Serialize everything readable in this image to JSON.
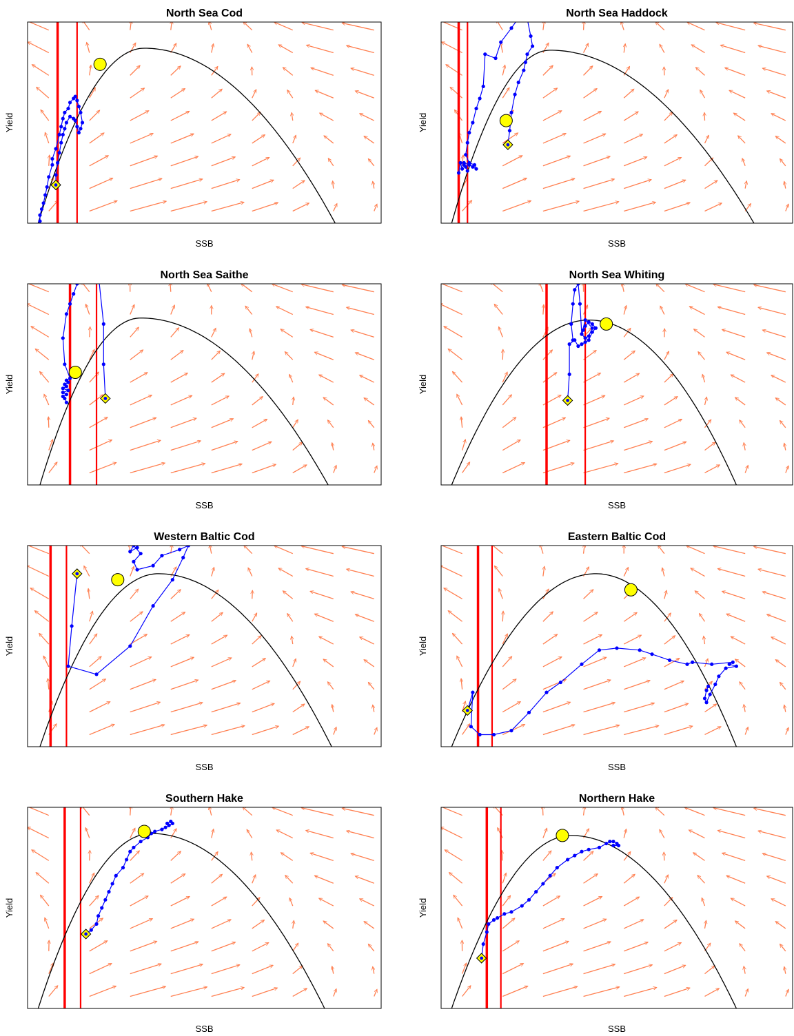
{
  "colors": {
    "arrow": "#ff7f50",
    "trajectory": "#0000ff",
    "curve": "#000000",
    "reference_line": "#ff0000",
    "marker_fill": "#ffff00"
  },
  "chart_data": [
    {
      "type": "scatter",
      "title": "North Sea Cod",
      "xlabel": "SSB",
      "ylabel": "Yield",
      "xlim": [
        0,
        1
      ],
      "ylim": [
        0,
        1
      ],
      "curve": {
        "type": "parabola",
        "x0": 0.03,
        "peak_x": 0.33,
        "peak_y": 0.87,
        "x1": 0.87
      },
      "vlines": [
        {
          "x": 0.085,
          "weight": "thick"
        },
        {
          "x": 0.14,
          "weight": "thin"
        }
      ],
      "circle": [
        0.205,
        0.79
      ],
      "diamond": [
        0.08,
        0.19
      ],
      "trajectory": [
        [
          0.035,
          0.01
        ],
        [
          0.035,
          0.04
        ],
        [
          0.04,
          0.07
        ],
        [
          0.045,
          0.1
        ],
        [
          0.05,
          0.14
        ],
        [
          0.055,
          0.18
        ],
        [
          0.06,
          0.23
        ],
        [
          0.07,
          0.29
        ],
        [
          0.07,
          0.32
        ],
        [
          0.08,
          0.37
        ],
        [
          0.09,
          0.44
        ],
        [
          0.095,
          0.48
        ],
        [
          0.1,
          0.52
        ],
        [
          0.105,
          0.55
        ],
        [
          0.115,
          0.57
        ],
        [
          0.12,
          0.6
        ],
        [
          0.13,
          0.62
        ],
        [
          0.135,
          0.63
        ],
        [
          0.14,
          0.61
        ],
        [
          0.145,
          0.58
        ],
        [
          0.15,
          0.55
        ],
        [
          0.155,
          0.5
        ],
        [
          0.15,
          0.47
        ],
        [
          0.145,
          0.45
        ],
        [
          0.14,
          0.48
        ],
        [
          0.135,
          0.51
        ],
        [
          0.13,
          0.52
        ],
        [
          0.12,
          0.53
        ],
        [
          0.11,
          0.5
        ],
        [
          0.105,
          0.47
        ],
        [
          0.1,
          0.44
        ],
        [
          0.095,
          0.4
        ],
        [
          0.09,
          0.35
        ],
        [
          0.085,
          0.3
        ],
        [
          0.08,
          0.24
        ],
        [
          0.08,
          0.2
        ]
      ]
    },
    {
      "type": "scatter",
      "title": "North Sea Haddock",
      "xlabel": "SSB",
      "ylabel": "Yield",
      "xlim": [
        0,
        1
      ],
      "ylim": [
        0,
        1
      ],
      "curve": {
        "type": "parabola",
        "x0": 0.03,
        "peak_x": 0.31,
        "peak_y": 0.86,
        "x1": 0.89
      },
      "vlines": [
        {
          "x": 0.05,
          "weight": "thick"
        },
        {
          "x": 0.075,
          "weight": "thin"
        }
      ],
      "circle": [
        0.185,
        0.51
      ],
      "diamond": [
        0.19,
        0.39
      ],
      "trajectory": [
        [
          0.05,
          0.25
        ],
        [
          0.055,
          0.3
        ],
        [
          0.06,
          0.27
        ],
        [
          0.065,
          0.29
        ],
        [
          0.07,
          0.28
        ],
        [
          0.075,
          0.26
        ],
        [
          0.065,
          0.3
        ],
        [
          0.08,
          0.29
        ],
        [
          0.09,
          0.28
        ],
        [
          0.1,
          0.27
        ],
        [
          0.095,
          0.29
        ],
        [
          0.08,
          0.3
        ],
        [
          0.07,
          0.34
        ],
        [
          0.075,
          0.4
        ],
        [
          0.08,
          0.45
        ],
        [
          0.09,
          0.5
        ],
        [
          0.1,
          0.57
        ],
        [
          0.11,
          0.62
        ],
        [
          0.12,
          0.68
        ],
        [
          0.125,
          0.84
        ],
        [
          0.155,
          0.82
        ],
        [
          0.17,
          0.9
        ],
        [
          0.2,
          0.97
        ],
        [
          0.22,
          1.02
        ],
        [
          0.24,
          1.06
        ],
        [
          0.255,
          0.93
        ],
        [
          0.26,
          0.88
        ],
        [
          0.245,
          0.84
        ],
        [
          0.24,
          0.8
        ],
        [
          0.235,
          0.76
        ],
        [
          0.22,
          0.7
        ],
        [
          0.21,
          0.64
        ],
        [
          0.2,
          0.55
        ],
        [
          0.195,
          0.46
        ],
        [
          0.19,
          0.39
        ]
      ]
    },
    {
      "type": "scatter",
      "title": "North Sea Saithe",
      "xlabel": "SSB",
      "ylabel": "Yield",
      "xlim": [
        0,
        1
      ],
      "ylim": [
        0,
        1
      ],
      "curve": {
        "type": "parabola",
        "x0": 0.035,
        "peak_x": 0.32,
        "peak_y": 0.83,
        "x1": 0.85
      },
      "vlines": [
        {
          "x": 0.12,
          "weight": "thick"
        },
        {
          "x": 0.195,
          "weight": "thin"
        }
      ],
      "circle": [
        0.135,
        0.56
      ],
      "diamond": [
        0.22,
        0.43
      ],
      "trajectory": [
        [
          0.11,
          0.41
        ],
        [
          0.105,
          0.43
        ],
        [
          0.1,
          0.44
        ],
        [
          0.11,
          0.45
        ],
        [
          0.1,
          0.46
        ],
        [
          0.115,
          0.47
        ],
        [
          0.1,
          0.48
        ],
        [
          0.11,
          0.49
        ],
        [
          0.105,
          0.5
        ],
        [
          0.115,
          0.51
        ],
        [
          0.11,
          0.52
        ],
        [
          0.12,
          0.53
        ],
        [
          0.105,
          0.6
        ],
        [
          0.1,
          0.73
        ],
        [
          0.11,
          0.85
        ],
        [
          0.12,
          0.9
        ],
        [
          0.13,
          0.95
        ],
        [
          0.14,
          1.0
        ],
        [
          0.2,
          1.05
        ],
        [
          0.215,
          0.8
        ],
        [
          0.215,
          0.6
        ],
        [
          0.22,
          0.43
        ]
      ]
    },
    {
      "type": "scatter",
      "title": "North Sea Whiting",
      "xlabel": "SSB",
      "ylabel": "Yield",
      "xlim": [
        0,
        1
      ],
      "ylim": [
        0,
        1
      ],
      "curve": {
        "type": "parabola",
        "x0": 0.03,
        "peak_x": 0.42,
        "peak_y": 0.82,
        "x1": 0.84
      },
      "vlines": [
        {
          "x": 0.3,
          "weight": "thick"
        },
        {
          "x": 0.41,
          "weight": "thin"
        }
      ],
      "circle": [
        0.47,
        0.8
      ],
      "diamond": [
        0.36,
        0.42
      ],
      "trajectory": [
        [
          0.36,
          0.42
        ],
        [
          0.365,
          0.55
        ],
        [
          0.365,
          0.7
        ],
        [
          0.38,
          0.72
        ],
        [
          0.39,
          0.69
        ],
        [
          0.4,
          0.7
        ],
        [
          0.41,
          0.71
        ],
        [
          0.42,
          0.72
        ],
        [
          0.43,
          0.76
        ],
        [
          0.44,
          0.78
        ],
        [
          0.43,
          0.8
        ],
        [
          0.42,
          0.81
        ],
        [
          0.41,
          0.79
        ],
        [
          0.405,
          0.77
        ],
        [
          0.4,
          0.75
        ],
        [
          0.41,
          0.73
        ],
        [
          0.42,
          0.74
        ],
        [
          0.43,
          0.78
        ],
        [
          0.41,
          0.82
        ],
        [
          0.4,
          0.75
        ],
        [
          0.395,
          0.9
        ],
        [
          0.39,
          1.0
        ],
        [
          0.38,
          0.97
        ],
        [
          0.375,
          0.9
        ],
        [
          0.37,
          0.8
        ],
        [
          0.375,
          0.72
        ]
      ]
    },
    {
      "type": "scatter",
      "title": "Western Baltic Cod",
      "xlabel": "SSB",
      "ylabel": "Yield",
      "xlim": [
        0,
        1
      ],
      "ylim": [
        0,
        1
      ],
      "curve": {
        "type": "parabola",
        "x0": 0.035,
        "peak_x": 0.37,
        "peak_y": 0.86,
        "x1": 0.86
      },
      "vlines": [
        {
          "x": 0.065,
          "weight": "thick"
        },
        {
          "x": 0.11,
          "weight": "thin"
        }
      ],
      "circle": [
        0.255,
        0.83
      ],
      "diamond": [
        0.14,
        0.86
      ],
      "trajectory": [
        [
          0.14,
          0.86
        ],
        [
          0.125,
          0.6
        ],
        [
          0.115,
          0.4
        ],
        [
          0.195,
          0.36
        ],
        [
          0.29,
          0.5
        ],
        [
          0.355,
          0.7
        ],
        [
          0.41,
          0.83
        ],
        [
          0.44,
          0.94
        ],
        [
          0.455,
          1.0
        ],
        [
          0.43,
          0.98
        ],
        [
          0.38,
          0.95
        ],
        [
          0.355,
          0.9
        ],
        [
          0.31,
          0.88
        ],
        [
          0.3,
          0.92
        ],
        [
          0.32,
          0.96
        ],
        [
          0.3,
          1.0
        ],
        [
          0.29,
          0.97
        ],
        [
          0.31,
          0.99
        ]
      ]
    },
    {
      "type": "scatter",
      "title": "Eastern Baltic Cod",
      "xlabel": "SSB",
      "ylabel": "Yield",
      "xlim": [
        0,
        1
      ],
      "ylim": [
        0,
        1
      ],
      "curve": {
        "type": "parabola",
        "x0": 0.03,
        "peak_x": 0.44,
        "peak_y": 0.86,
        "x1": 0.84
      },
      "vlines": [
        {
          "x": 0.105,
          "weight": "thick"
        },
        {
          "x": 0.145,
          "weight": "thin"
        }
      ],
      "circle": [
        0.54,
        0.78
      ],
      "diamond": [
        0.075,
        0.18
      ],
      "trajectory": [
        [
          0.075,
          0.18
        ],
        [
          0.09,
          0.27
        ],
        [
          0.085,
          0.1
        ],
        [
          0.11,
          0.06
        ],
        [
          0.15,
          0.06
        ],
        [
          0.2,
          0.08
        ],
        [
          0.25,
          0.17
        ],
        [
          0.3,
          0.27
        ],
        [
          0.34,
          0.32
        ],
        [
          0.4,
          0.41
        ],
        [
          0.45,
          0.48
        ],
        [
          0.5,
          0.49
        ],
        [
          0.565,
          0.48
        ],
        [
          0.6,
          0.46
        ],
        [
          0.65,
          0.43
        ],
        [
          0.7,
          0.41
        ],
        [
          0.715,
          0.42
        ],
        [
          0.77,
          0.41
        ],
        [
          0.83,
          0.42
        ],
        [
          0.82,
          0.41
        ],
        [
          0.84,
          0.4
        ],
        [
          0.81,
          0.39
        ],
        [
          0.79,
          0.35
        ],
        [
          0.78,
          0.31
        ],
        [
          0.765,
          0.26
        ],
        [
          0.755,
          0.22
        ],
        [
          0.75,
          0.24
        ],
        [
          0.755,
          0.28
        ],
        [
          0.76,
          0.3
        ]
      ]
    },
    {
      "type": "scatter",
      "title": "Southern Hake",
      "xlabel": "SSB",
      "ylabel": "Yield",
      "xlim": [
        0,
        1
      ],
      "ylim": [
        0,
        1
      ],
      "curve": {
        "type": "parabola",
        "x0": 0.03,
        "peak_x": 0.35,
        "peak_y": 0.87,
        "x1": 0.84
      },
      "vlines": [
        {
          "x": 0.105,
          "weight": "thick"
        },
        {
          "x": 0.15,
          "weight": "thin"
        }
      ],
      "circle": [
        0.33,
        0.88
      ],
      "diamond": [
        0.165,
        0.37
      ],
      "trajectory": [
        [
          0.165,
          0.37
        ],
        [
          0.18,
          0.39
        ],
        [
          0.195,
          0.42
        ],
        [
          0.2,
          0.46
        ],
        [
          0.21,
          0.5
        ],
        [
          0.22,
          0.54
        ],
        [
          0.23,
          0.58
        ],
        [
          0.24,
          0.62
        ],
        [
          0.25,
          0.66
        ],
        [
          0.27,
          0.7
        ],
        [
          0.28,
          0.74
        ],
        [
          0.29,
          0.78
        ],
        [
          0.3,
          0.8
        ],
        [
          0.32,
          0.83
        ],
        [
          0.34,
          0.85
        ],
        [
          0.35,
          0.87
        ],
        [
          0.36,
          0.88
        ],
        [
          0.38,
          0.89
        ],
        [
          0.39,
          0.9
        ],
        [
          0.4,
          0.91
        ],
        [
          0.41,
          0.92
        ],
        [
          0.405,
          0.93
        ],
        [
          0.395,
          0.92
        ]
      ]
    },
    {
      "type": "scatter",
      "title": "Northern Hake",
      "xlabel": "SSB",
      "ylabel": "Yield",
      "xlim": [
        0,
        1
      ],
      "ylim": [
        0,
        1
      ],
      "curve": {
        "type": "parabola",
        "x0": 0.03,
        "peak_x": 0.37,
        "peak_y": 0.86,
        "x1": 0.84
      },
      "vlines": [
        {
          "x": 0.13,
          "weight": "thick"
        },
        {
          "x": 0.17,
          "weight": "thin"
        }
      ],
      "circle": [
        0.345,
        0.86
      ],
      "diamond": [
        0.115,
        0.25
      ],
      "trajectory": [
        [
          0.115,
          0.25
        ],
        [
          0.12,
          0.32
        ],
        [
          0.13,
          0.38
        ],
        [
          0.135,
          0.42
        ],
        [
          0.15,
          0.44
        ],
        [
          0.16,
          0.45
        ],
        [
          0.18,
          0.47
        ],
        [
          0.2,
          0.48
        ],
        [
          0.23,
          0.51
        ],
        [
          0.25,
          0.54
        ],
        [
          0.27,
          0.58
        ],
        [
          0.29,
          0.62
        ],
        [
          0.31,
          0.66
        ],
        [
          0.33,
          0.7
        ],
        [
          0.36,
          0.74
        ],
        [
          0.38,
          0.76
        ],
        [
          0.4,
          0.78
        ],
        [
          0.42,
          0.79
        ],
        [
          0.45,
          0.8
        ],
        [
          0.47,
          0.82
        ],
        [
          0.48,
          0.83
        ],
        [
          0.49,
          0.83
        ],
        [
          0.5,
          0.82
        ],
        [
          0.505,
          0.81
        ],
        [
          0.49,
          0.81
        ]
      ]
    }
  ]
}
